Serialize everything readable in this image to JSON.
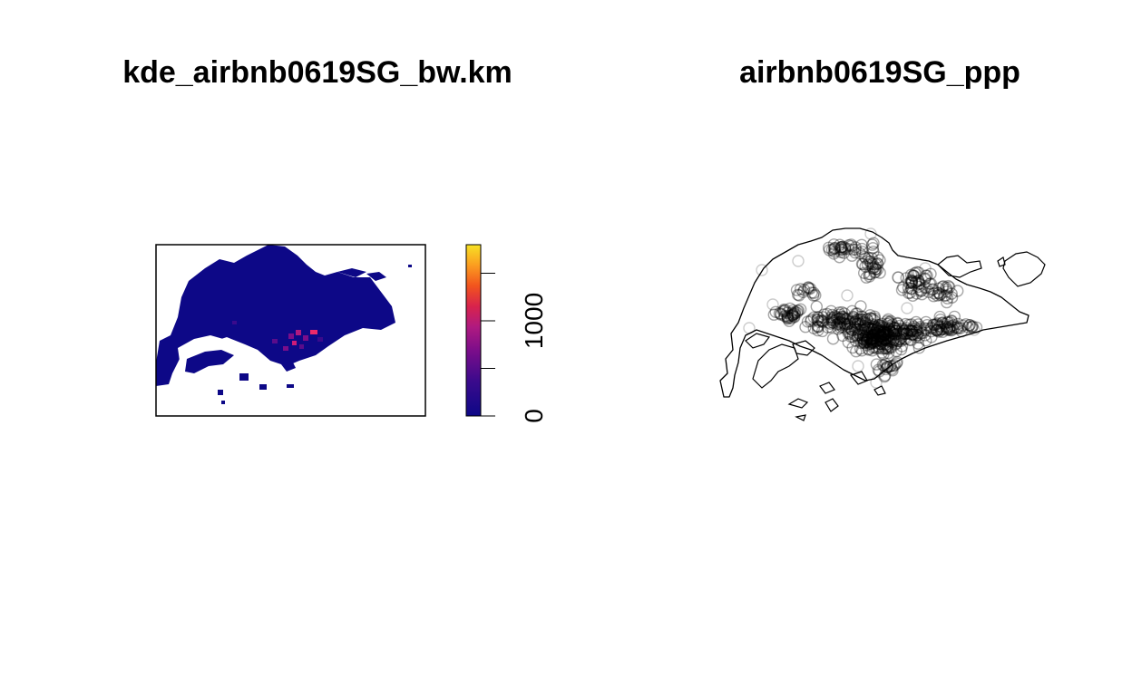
{
  "panels": {
    "left_title": "kde_airbnb0619SG_bw.km",
    "right_title": "airbnb0619SG_ppp"
  },
  "colors": {
    "low": "#0d0887",
    "mid": "#cc0060",
    "high": "#f7e225",
    "boundary": "#000000",
    "points": "#000000"
  },
  "chart_data": [
    {
      "type": "heatmap",
      "title": "kde_airbnb0619SG_bw.km",
      "xlabel": "",
      "ylabel": "",
      "colorbar": {
        "ticks": [
          0,
          500,
          1000,
          1500
        ],
        "tick_labels": [
          "0",
          "",
          "1000",
          ""
        ],
        "range": [
          0,
          1800
        ],
        "palette": [
          "#0d0887",
          "#3e0a8a",
          "#7a0d8a",
          "#a61a85",
          "#cc0060",
          "#ee3a1a",
          "#fa7a1a",
          "#f7e225"
        ]
      },
      "hotspots": [
        {
          "region": "central-south",
          "value": 1400
        },
        {
          "region": "central-south",
          "value": 1100
        },
        {
          "region": "central",
          "value": 900
        },
        {
          "region": "east-central",
          "value": 1000
        }
      ]
    },
    {
      "type": "scatter",
      "title": "airbnb0619SG_ppp",
      "xlabel": "",
      "ylabel": ""
    }
  ]
}
